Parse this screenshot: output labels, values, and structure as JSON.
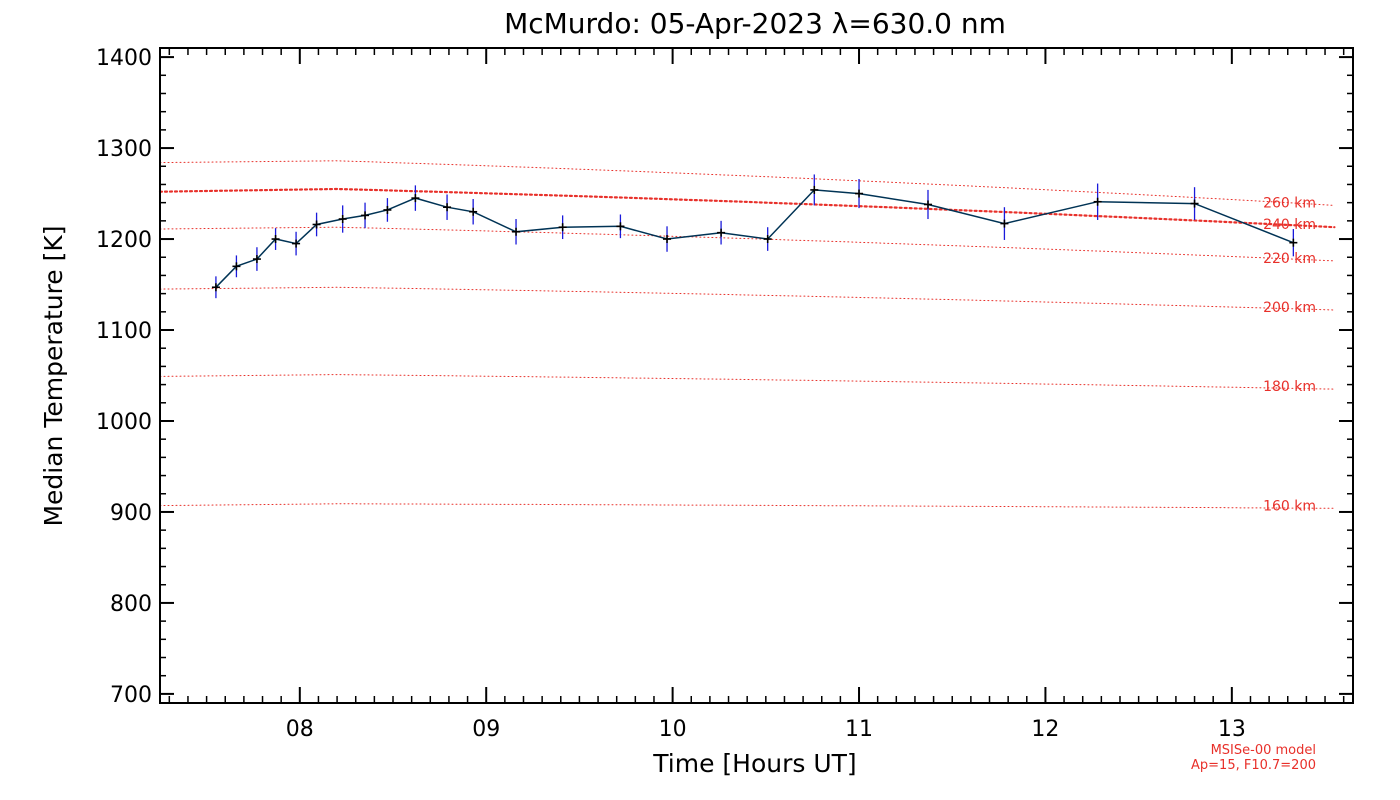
{
  "chart_data": {
    "type": "line",
    "title": "McMurdo: 05-Apr-2023 λ=630.0 nm",
    "xlabel": "Time [Hours UT]",
    "ylabel": "Median Temperature [K]",
    "xlim": [
      7.25,
      13.65
    ],
    "ylim": [
      690,
      1410
    ],
    "x_ticks": [
      8,
      9,
      10,
      11,
      12,
      13
    ],
    "x_tick_labels": [
      "08",
      "09",
      "10",
      "11",
      "12",
      "13"
    ],
    "y_ticks": [
      700,
      800,
      900,
      1000,
      1100,
      1200,
      1300,
      1400
    ],
    "y_tick_labels": [
      "700",
      "800",
      "900",
      "1000",
      "1100",
      "1200",
      "1300",
      "1400"
    ],
    "series": [
      {
        "name": "Median Temperature",
        "color": "#003355",
        "error_color": "#1a1adb",
        "x": [
          7.55,
          7.66,
          7.77,
          7.87,
          7.98,
          8.09,
          8.23,
          8.35,
          8.47,
          8.62,
          8.79,
          8.93,
          9.16,
          9.41,
          9.72,
          9.97,
          10.26,
          10.51,
          10.76,
          11.0,
          11.37,
          11.78,
          12.28,
          12.8,
          13.33
        ],
        "y": [
          1147,
          1170,
          1178,
          1200,
          1195,
          1216,
          1222,
          1226,
          1232,
          1245,
          1235,
          1230,
          1208,
          1213,
          1214,
          1200,
          1207,
          1200,
          1254,
          1250,
          1238,
          1217,
          1241,
          1239,
          1196
        ],
        "err": [
          12,
          12,
          13,
          12,
          13,
          13,
          15,
          14,
          13,
          14,
          14,
          14,
          14,
          13,
          13,
          14,
          13,
          13,
          17,
          16,
          16,
          18,
          20,
          18,
          15
        ]
      }
    ],
    "model_curves": [
      {
        "label": "260 km",
        "y_start": 1284,
        "y_peak": 1286,
        "y_end": 1237,
        "emphasis": false
      },
      {
        "label": "240 km",
        "y_start": 1252,
        "y_peak": 1255,
        "y_end": 1213,
        "emphasis": true
      },
      {
        "label": "220 km",
        "y_start": 1211,
        "y_peak": 1213,
        "y_end": 1176,
        "emphasis": false
      },
      {
        "label": "200 km",
        "y_start": 1145,
        "y_peak": 1147,
        "y_end": 1122,
        "emphasis": false
      },
      {
        "label": "180 km",
        "y_start": 1049,
        "y_peak": 1051,
        "y_end": 1035,
        "emphasis": false
      },
      {
        "label": "160 km",
        "y_start": 907,
        "y_peak": 909,
        "y_end": 904,
        "emphasis": false
      }
    ],
    "model_note": [
      "MSISe-00 model",
      "Ap=15, F10.7=200"
    ],
    "model_color": "#e8302a",
    "grid": false,
    "legend": "none"
  }
}
